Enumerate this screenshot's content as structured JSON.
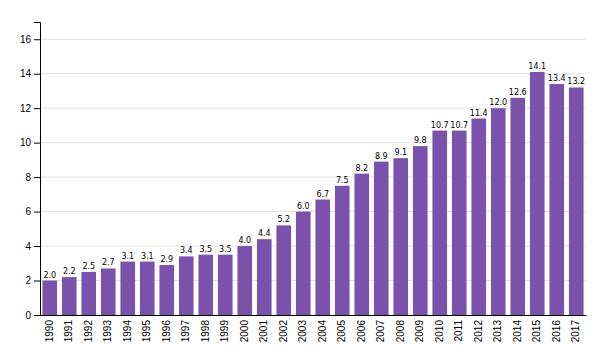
{
  "chart_data": {
    "type": "bar",
    "categories": [
      "1990",
      "1991",
      "1992",
      "1993",
      "1994",
      "1995",
      "1996",
      "1997",
      "1998",
      "1999",
      "2000",
      "2001",
      "2002",
      "2003",
      "2004",
      "2005",
      "2006",
      "2007",
      "2008",
      "2009",
      "2010",
      "2011",
      "2012",
      "2013",
      "2014",
      "2015",
      "2016",
      "2017"
    ],
    "values": [
      2.0,
      2.2,
      2.5,
      2.7,
      3.1,
      3.1,
      2.9,
      3.4,
      3.5,
      3.5,
      4.0,
      4.4,
      5.2,
      6.0,
      6.7,
      7.5,
      8.2,
      8.9,
      9.1,
      9.8,
      10.7,
      10.7,
      11.4,
      12.0,
      12.6,
      14.1,
      13.4,
      13.2
    ],
    "value_labels": [
      "2.0",
      "2.2",
      "2.5",
      "2.7",
      "3.1",
      "3.1",
      "2.9",
      "3.4",
      "3.5",
      "3.5",
      "4.0",
      "4.4",
      "5.2",
      "6.0",
      "6.7",
      "7.5",
      "8.2",
      "8.9",
      "9.1",
      "9.8",
      "10.7",
      "10.7",
      "11.4",
      "12.0",
      "12.6",
      "14.1",
      "13.4",
      "13.2"
    ],
    "data_labels": true,
    "color": "#7B52AB",
    "ylim": [
      0,
      17.0
    ],
    "yticks": [
      0,
      2,
      4,
      6,
      8,
      10,
      12,
      14,
      16
    ],
    "grid": true
  }
}
